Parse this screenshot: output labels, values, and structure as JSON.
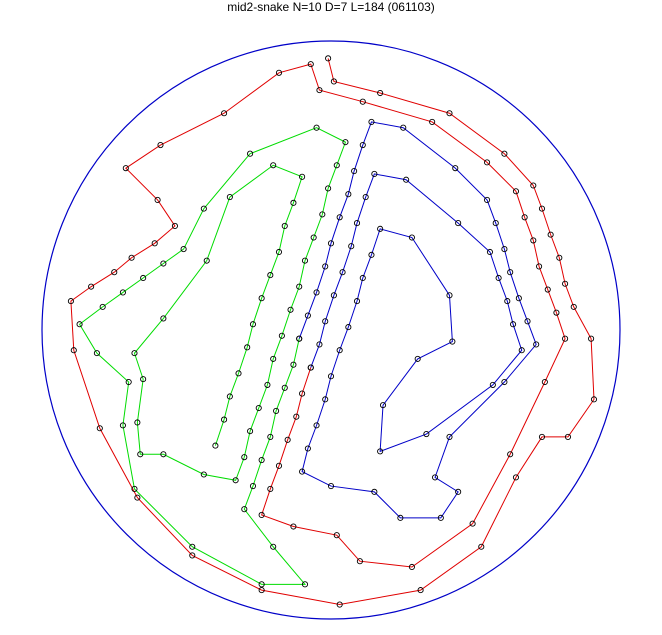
{
  "chart_data": {
    "type": "line",
    "title": "mid2-snake N=10 D=7 L=184 (061103)",
    "xlabel": "",
    "ylabel": "",
    "boundary": {
      "shape": "circle",
      "center": [
        0,
        0
      ],
      "radius": 1,
      "color": "#0000c8"
    },
    "marker": {
      "shape": "open-circle",
      "color": "#000000"
    },
    "grid": false,
    "axes_visible": false,
    "series": [
      {
        "color": "#e00000",
        "points": [
          [
            -0.01,
            0.94
          ],
          [
            0.01,
            0.86
          ],
          [
            0.17,
            0.82
          ],
          [
            0.41,
            0.75
          ],
          [
            0.6,
            0.61
          ],
          [
            0.7,
            0.5
          ],
          [
            0.73,
            0.42
          ],
          [
            0.76,
            0.33
          ],
          [
            0.79,
            0.25
          ],
          [
            0.81,
            0.16
          ],
          [
            0.84,
            0.08
          ],
          [
            0.9,
            -0.03
          ],
          [
            0.91,
            -0.24
          ],
          [
            0.82,
            -0.37
          ],
          [
            0.73,
            -0.37
          ],
          [
            0.64,
            -0.51
          ],
          [
            0.52,
            -0.75
          ],
          [
            0.31,
            -0.9
          ],
          [
            0.03,
            -0.95
          ],
          [
            -0.24,
            -0.9
          ],
          [
            -0.48,
            -0.78
          ],
          [
            -0.67,
            -0.58
          ],
          [
            -0.8,
            -0.34
          ],
          [
            -0.89,
            -0.07
          ],
          [
            -0.9,
            0.1
          ],
          [
            -0.83,
            0.15
          ],
          [
            -0.75,
            0.2
          ],
          [
            -0.69,
            0.25
          ],
          [
            -0.61,
            0.3
          ],
          [
            -0.54,
            0.36
          ],
          [
            -0.6,
            0.45
          ],
          [
            -0.71,
            0.56
          ],
          [
            -0.59,
            0.64
          ],
          [
            -0.37,
            0.75
          ],
          [
            -0.18,
            0.89
          ],
          [
            -0.07,
            0.92
          ],
          [
            -0.04,
            0.83
          ],
          [
            0.11,
            0.79
          ],
          [
            0.35,
            0.72
          ],
          [
            0.54,
            0.58
          ],
          [
            0.64,
            0.48
          ],
          [
            0.67,
            0.39
          ],
          [
            0.7,
            0.31
          ],
          [
            0.72,
            0.22
          ],
          [
            0.75,
            0.14
          ],
          [
            0.78,
            0.06
          ],
          [
            0.81,
            -0.03
          ],
          [
            0.74,
            -0.18
          ],
          [
            0.62,
            -0.43
          ],
          [
            0.49,
            -0.67
          ],
          [
            0.28,
            -0.82
          ],
          [
            0.1,
            -0.8
          ],
          [
            0.02,
            -0.71
          ],
          [
            -0.13,
            -0.68
          ],
          [
            -0.24,
            -0.64
          ],
          [
            -0.21,
            -0.55
          ],
          [
            -0.18,
            -0.47
          ],
          [
            -0.15,
            -0.38
          ],
          [
            -0.12,
            -0.3
          ],
          [
            -0.1,
            -0.22
          ],
          [
            -0.07,
            -0.13
          ]
        ]
      },
      {
        "color": "#0000c8",
        "points": [
          [
            -0.07,
            -0.13
          ],
          [
            -0.04,
            -0.05
          ],
          [
            -0.02,
            0.03
          ],
          [
            0.01,
            0.12
          ],
          [
            0.04,
            0.2
          ],
          [
            0.07,
            0.29
          ],
          [
            0.09,
            0.37
          ],
          [
            0.12,
            0.46
          ],
          [
            0.15,
            0.54
          ],
          [
            0.26,
            0.52
          ],
          [
            0.44,
            0.37
          ],
          [
            0.55,
            0.27
          ],
          [
            0.58,
            0.18
          ],
          [
            0.61,
            0.1
          ],
          [
            0.63,
            0.02
          ],
          [
            0.66,
            -0.07
          ],
          [
            0.56,
            -0.19
          ],
          [
            0.33,
            -0.36
          ],
          [
            0.17,
            -0.42
          ],
          [
            0.18,
            -0.26
          ],
          [
            0.3,
            -0.1
          ],
          [
            0.42,
            -0.04
          ],
          [
            0.41,
            0.12
          ],
          [
            0.28,
            0.32
          ],
          [
            0.17,
            0.35
          ],
          [
            0.14,
            0.26
          ],
          [
            0.11,
            0.18
          ],
          [
            0.09,
            0.1
          ],
          [
            0.06,
            0.01
          ],
          [
            0.03,
            -0.07
          ],
          [
            0.0,
            -0.16
          ],
          [
            -0.02,
            -0.24
          ],
          [
            -0.05,
            -0.33
          ],
          [
            -0.08,
            -0.41
          ],
          [
            -0.1,
            -0.49
          ],
          [
            0.0,
            -0.54
          ],
          [
            0.15,
            -0.56
          ],
          [
            0.24,
            -0.65
          ],
          [
            0.38,
            -0.65
          ],
          [
            0.44,
            -0.56
          ],
          [
            0.36,
            -0.51
          ],
          [
            0.41,
            -0.37
          ],
          [
            0.6,
            -0.18
          ],
          [
            0.71,
            -0.05
          ],
          [
            0.68,
            0.03
          ],
          [
            0.65,
            0.11
          ],
          [
            0.62,
            0.2
          ],
          [
            0.6,
            0.28
          ],
          [
            0.57,
            0.37
          ],
          [
            0.54,
            0.45
          ],
          [
            0.43,
            0.56
          ],
          [
            0.25,
            0.7
          ],
          [
            0.14,
            0.72
          ],
          [
            0.11,
            0.64
          ],
          [
            0.08,
            0.55
          ],
          [
            0.06,
            0.47
          ],
          [
            0.03,
            0.39
          ],
          [
            0.0,
            0.3
          ],
          [
            -0.02,
            0.22
          ],
          [
            -0.05,
            0.13
          ],
          [
            -0.08,
            0.05
          ],
          [
            -0.11,
            -0.03
          ]
        ]
      },
      {
        "color": "#00dc00",
        "points": [
          [
            -0.11,
            -0.03
          ],
          [
            -0.13,
            -0.12
          ],
          [
            -0.16,
            -0.2
          ],
          [
            -0.19,
            -0.28
          ],
          [
            -0.21,
            -0.37
          ],
          [
            -0.24,
            -0.45
          ],
          [
            -0.27,
            -0.54
          ],
          [
            -0.3,
            -0.62
          ],
          [
            -0.2,
            -0.75
          ],
          [
            -0.09,
            -0.88
          ],
          [
            -0.24,
            -0.88
          ],
          [
            -0.48,
            -0.75
          ],
          [
            -0.68,
            -0.55
          ],
          [
            -0.72,
            -0.33
          ],
          [
            -0.7,
            -0.18
          ],
          [
            -0.81,
            -0.08
          ],
          [
            -0.87,
            0.02
          ],
          [
            -0.79,
            0.08
          ],
          [
            -0.72,
            0.13
          ],
          [
            -0.65,
            0.18
          ],
          [
            -0.58,
            0.23
          ],
          [
            -0.51,
            0.28
          ],
          [
            -0.44,
            0.42
          ],
          [
            -0.28,
            0.61
          ],
          [
            -0.05,
            0.7
          ],
          [
            0.05,
            0.65
          ],
          [
            0.02,
            0.57
          ],
          [
            -0.01,
            0.49
          ],
          [
            -0.03,
            0.4
          ],
          [
            -0.06,
            0.32
          ],
          [
            -0.09,
            0.24
          ],
          [
            -0.11,
            0.15
          ],
          [
            -0.14,
            0.07
          ],
          [
            -0.17,
            -0.02
          ],
          [
            -0.2,
            -0.1
          ],
          [
            -0.22,
            -0.19
          ],
          [
            -0.25,
            -0.27
          ],
          [
            -0.28,
            -0.35
          ],
          [
            -0.3,
            -0.44
          ],
          [
            -0.33,
            -0.52
          ],
          [
            -0.44,
            -0.5
          ],
          [
            -0.58,
            -0.43
          ],
          [
            -0.66,
            -0.43
          ],
          [
            -0.67,
            -0.32
          ],
          [
            -0.65,
            -0.17
          ],
          [
            -0.68,
            -0.08
          ],
          [
            -0.58,
            0.04
          ],
          [
            -0.43,
            0.24
          ],
          [
            -0.35,
            0.46
          ],
          [
            -0.2,
            0.57
          ],
          [
            -0.1,
            0.53
          ],
          [
            -0.13,
            0.44
          ],
          [
            -0.16,
            0.36
          ],
          [
            -0.18,
            0.27
          ],
          [
            -0.21,
            0.19
          ],
          [
            -0.24,
            0.11
          ],
          [
            -0.27,
            0.02
          ],
          [
            -0.29,
            -0.06
          ],
          [
            -0.32,
            -0.15
          ],
          [
            -0.35,
            -0.23
          ],
          [
            -0.37,
            -0.31
          ],
          [
            -0.4,
            -0.4
          ]
        ]
      }
    ]
  }
}
